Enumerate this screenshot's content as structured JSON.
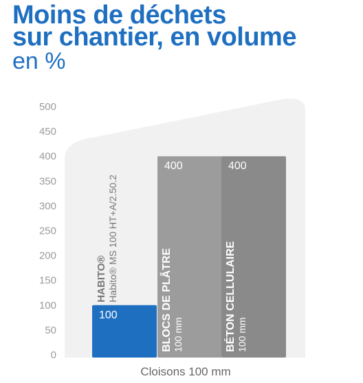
{
  "title": {
    "line1": "Moins de déchets",
    "line2": "sur chantier, en volume",
    "line3": "en %"
  },
  "chart_data": {
    "type": "bar",
    "xlabel": "Cloisons 100 mm",
    "ylabel": "",
    "ylim": [
      0,
      500
    ],
    "yticks": [
      "500",
      "450",
      "400",
      "350",
      "300",
      "250",
      "200",
      "150",
      "100",
      "50",
      "0"
    ],
    "grid": false,
    "bars": [
      {
        "name": "HABITO®",
        "subtitle": "Habito® MS 100 HT+A/2.50.2",
        "value": 100,
        "value_label": "100",
        "color": "#1f6fc1"
      },
      {
        "name": "BLOCS DE PLÂTRE",
        "subtitle": "100 mm",
        "value": 400,
        "value_label": "400",
        "color": "#9c9c9c"
      },
      {
        "name": "BÉTON CELLULAIRE",
        "subtitle": "100 mm",
        "value": 400,
        "value_label": "400",
        "color": "#8a8a8a"
      }
    ]
  }
}
